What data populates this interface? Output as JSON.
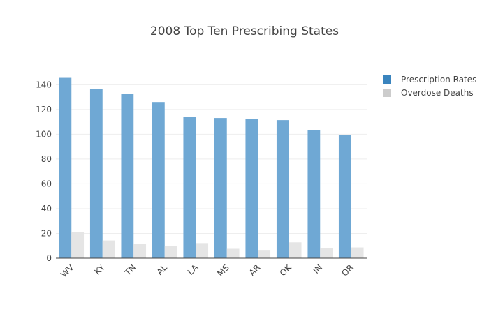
{
  "chart_data": {
    "type": "bar",
    "title": "2008 Top Ten Prescribing States",
    "xlabel": "",
    "ylabel": "",
    "categories": [
      "WV",
      "KY",
      "TN",
      "AL",
      "LA",
      "MS",
      "AR",
      "OK",
      "IN",
      "OR"
    ],
    "series": [
      {
        "name": "Prescription Rates",
        "color": "#6fa8d4",
        "legend_color": "#3a84be",
        "values": [
          145.5,
          136.5,
          132.8,
          126,
          113.8,
          113.1,
          112.1,
          111.4,
          103.2,
          99.1
        ]
      },
      {
        "name": "Overdose Deaths",
        "color": "#e5e5e5",
        "legend_color": "#cccccc",
        "values": [
          21.3,
          14.3,
          11.5,
          10.1,
          12.2,
          7.6,
          6.7,
          12.8,
          8,
          8.7
        ]
      }
    ],
    "ylim": [
      0,
      152
    ],
    "yticks": [
      0,
      20,
      40,
      60,
      80,
      100,
      120,
      140
    ],
    "grid": true,
    "legend": "top-right"
  }
}
